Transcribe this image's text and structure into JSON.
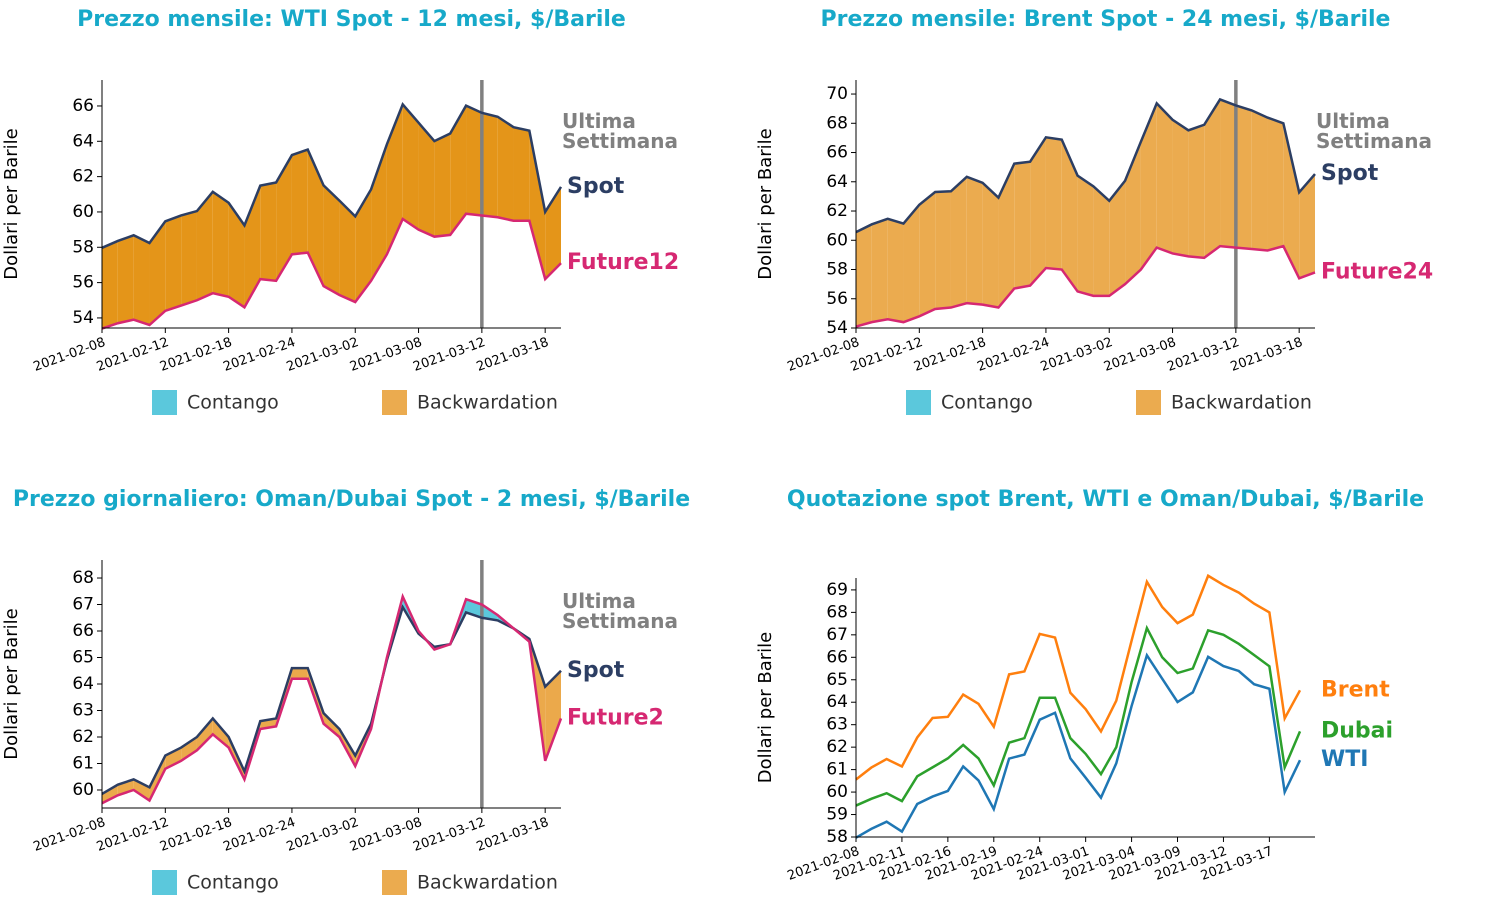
{
  "chart_data": [
    {
      "type": "area",
      "title": "Prezzo mensile: WTI Spot - 12 mesi, $/Barile",
      "ylabel": "Dollari per Barile",
      "categories": [
        "2021-02-08",
        "2021-02-09",
        "2021-02-10",
        "2021-02-11",
        "2021-02-12",
        "2021-02-15",
        "2021-02-16",
        "2021-02-17",
        "2021-02-18",
        "2021-02-19",
        "2021-02-22",
        "2021-02-23",
        "2021-02-24",
        "2021-02-25",
        "2021-02-26",
        "2021-03-01",
        "2021-03-02",
        "2021-03-03",
        "2021-03-04",
        "2021-03-05",
        "2021-03-08",
        "2021-03-09",
        "2021-03-10",
        "2021-03-11",
        "2021-03-12",
        "2021-03-15",
        "2021-03-16",
        "2021-03-17",
        "2021-03-18",
        "2021-03-19"
      ],
      "series": [
        {
          "name": "Spot",
          "color": "#2c3e63",
          "values": [
            57.97,
            58.36,
            58.68,
            58.24,
            59.47,
            59.8,
            60.05,
            61.14,
            60.52,
            59.24,
            61.49,
            61.67,
            63.22,
            63.53,
            61.5,
            60.64,
            59.75,
            61.28,
            63.83,
            66.09,
            65.05,
            64.01,
            64.44,
            66.02,
            65.61,
            65.39,
            64.8,
            64.6,
            60.0,
            61.42
          ]
        },
        {
          "name": "Future12",
          "color": "#d62872",
          "values": [
            53.4,
            53.7,
            53.9,
            53.6,
            54.4,
            54.7,
            55.0,
            55.4,
            55.2,
            54.6,
            56.2,
            56.1,
            57.6,
            57.7,
            55.8,
            55.3,
            54.9,
            56.1,
            57.6,
            59.6,
            59.0,
            58.6,
            58.7,
            59.9,
            59.8,
            59.7,
            59.5,
            59.5,
            56.2,
            57.1
          ]
        }
      ],
      "contango_color": "#5bc8dc",
      "backwardation_color": "#e49519",
      "legend": [
        {
          "name": "Contango",
          "color": "#5bc8dc"
        },
        {
          "name": "Backwardation",
          "color": "#ebab4f"
        }
      ],
      "marker": {
        "x": "2021-03-12",
        "label": "Ultima Settimana",
        "color": "#808080"
      },
      "ylim": [
        53.43,
        67.47
      ],
      "yticks": [
        54,
        56,
        58,
        60,
        62,
        64,
        66
      ],
      "xticks": [
        "2021-02-08",
        "2021-02-12",
        "2021-02-18",
        "2021-02-24",
        "2021-03-02",
        "2021-03-08",
        "2021-03-12",
        "2021-03-18"
      ]
    },
    {
      "type": "area",
      "title": "Prezzo mensile: Brent Spot - 24 mesi, $/Barile",
      "ylabel": "Dollari per Barile",
      "categories": [
        "2021-02-08",
        "2021-02-09",
        "2021-02-10",
        "2021-02-11",
        "2021-02-12",
        "2021-02-15",
        "2021-02-16",
        "2021-02-17",
        "2021-02-18",
        "2021-02-19",
        "2021-02-22",
        "2021-02-23",
        "2021-02-24",
        "2021-02-25",
        "2021-02-26",
        "2021-03-01",
        "2021-03-02",
        "2021-03-03",
        "2021-03-04",
        "2021-03-05",
        "2021-03-08",
        "2021-03-09",
        "2021-03-10",
        "2021-03-11",
        "2021-03-12",
        "2021-03-15",
        "2021-03-16",
        "2021-03-17",
        "2021-03-18",
        "2021-03-19"
      ],
      "series": [
        {
          "name": "Spot",
          "color": "#2c3e63",
          "values": [
            60.56,
            61.09,
            61.47,
            61.14,
            62.43,
            63.3,
            63.35,
            64.34,
            63.93,
            62.91,
            65.24,
            65.37,
            67.04,
            66.88,
            64.42,
            63.69,
            62.7,
            64.07,
            66.74,
            69.36,
            68.24,
            67.52,
            67.9,
            69.63,
            69.22,
            68.88,
            68.39,
            68.0,
            63.28,
            64.53
          ]
        },
        {
          "name": "Future24",
          "color": "#d62872",
          "values": [
            54.1,
            54.4,
            54.6,
            54.4,
            54.8,
            55.3,
            55.4,
            55.7,
            55.6,
            55.4,
            56.7,
            56.9,
            58.1,
            58.0,
            56.5,
            56.2,
            56.2,
            57.0,
            58.0,
            59.5,
            59.1,
            58.9,
            58.8,
            59.6,
            59.5,
            59.4,
            59.3,
            59.6,
            57.4,
            57.8
          ]
        }
      ],
      "contango_color": "#5bc8dc",
      "backwardation_color": "#ebab4f",
      "legend": [
        {
          "name": "Contango",
          "color": "#5bc8dc"
        },
        {
          "name": "Backwardation",
          "color": "#ebab4f"
        }
      ],
      "marker": {
        "x": "2021-03-12",
        "label": "Ultima Settimana",
        "color": "#808080"
      },
      "ylim": [
        54,
        70.96
      ],
      "yticks": [
        54,
        56,
        58,
        60,
        62,
        64,
        66,
        68,
        70
      ],
      "xticks": [
        "2021-02-08",
        "2021-02-12",
        "2021-02-18",
        "2021-02-24",
        "2021-03-02",
        "2021-03-08",
        "2021-03-12",
        "2021-03-18"
      ]
    },
    {
      "type": "area",
      "title": "Prezzo giornaliero: Oman/Dubai Spot - 2 mesi, $/Barile",
      "ylabel": "Dollari per Barile",
      "categories": [
        "2021-02-08",
        "2021-02-09",
        "2021-02-10",
        "2021-02-11",
        "2021-02-12",
        "2021-02-15",
        "2021-02-16",
        "2021-02-17",
        "2021-02-18",
        "2021-02-19",
        "2021-02-22",
        "2021-02-23",
        "2021-02-24",
        "2021-02-25",
        "2021-02-26",
        "2021-03-01",
        "2021-03-02",
        "2021-03-03",
        "2021-03-04",
        "2021-03-05",
        "2021-03-08",
        "2021-03-09",
        "2021-03-10",
        "2021-03-11",
        "2021-03-12",
        "2021-03-15",
        "2021-03-16",
        "2021-03-17",
        "2021-03-18",
        "2021-03-19"
      ],
      "series": [
        {
          "name": "Spot",
          "color": "#2c3e63",
          "values": [
            59.85,
            60.2,
            60.4,
            60.1,
            61.3,
            61.6,
            62.0,
            62.7,
            62.0,
            60.7,
            62.6,
            62.7,
            64.6,
            64.6,
            62.9,
            62.3,
            61.3,
            62.5,
            64.9,
            66.9,
            65.9,
            65.4,
            65.5,
            66.7,
            66.5,
            66.4,
            66.1,
            65.7,
            63.9,
            64.5
          ]
        },
        {
          "name": "Future2",
          "color": "#d62872",
          "values": [
            59.5,
            59.8,
            60.0,
            59.6,
            60.8,
            61.1,
            61.5,
            62.1,
            61.6,
            60.4,
            62.3,
            62.4,
            64.2,
            64.2,
            62.5,
            62.0,
            60.9,
            62.3,
            65.0,
            67.3,
            66.0,
            65.3,
            65.5,
            67.2,
            67.0,
            66.6,
            66.1,
            65.6,
            61.1,
            62.7
          ]
        }
      ],
      "contango_color": "#5bc8dc",
      "backwardation_color": "#eba94b",
      "legend": [
        {
          "name": "Contango",
          "color": "#5bc8dc"
        },
        {
          "name": "Backwardation",
          "color": "#ebab4f"
        }
      ],
      "marker": {
        "x": "2021-03-12",
        "label": "Ultima Settimana",
        "color": "#808080"
      },
      "ylim": [
        59.32,
        68.68
      ],
      "yticks": [
        60,
        61,
        62,
        63,
        64,
        65,
        66,
        67,
        68
      ],
      "xticks": [
        "2021-02-08",
        "2021-02-12",
        "2021-02-18",
        "2021-02-24",
        "2021-03-02",
        "2021-03-08",
        "2021-03-12",
        "2021-03-18"
      ]
    },
    {
      "type": "line",
      "title": "Quotazione spot Brent, WTI e Oman/Dubai, $/Barile",
      "ylabel": "Dollari per Barile",
      "categories": [
        "2021-02-08",
        "2021-02-09",
        "2021-02-10",
        "2021-02-11",
        "2021-02-12",
        "2021-02-15",
        "2021-02-16",
        "2021-02-17",
        "2021-02-18",
        "2021-02-19",
        "2021-02-22",
        "2021-02-23",
        "2021-02-24",
        "2021-02-25",
        "2021-02-26",
        "2021-03-01",
        "2021-03-02",
        "2021-03-03",
        "2021-03-04",
        "2021-03-05",
        "2021-03-08",
        "2021-03-09",
        "2021-03-10",
        "2021-03-11",
        "2021-03-12",
        "2021-03-15",
        "2021-03-16",
        "2021-03-17",
        "2021-03-18",
        "2021-03-19"
      ],
      "series": [
        {
          "name": "Brent",
          "color": "#ff7f0e",
          "values": [
            60.56,
            61.09,
            61.47,
            61.14,
            62.43,
            63.3,
            63.35,
            64.34,
            63.93,
            62.91,
            65.24,
            65.37,
            67.04,
            66.88,
            64.42,
            63.69,
            62.7,
            64.07,
            66.74,
            69.36,
            68.24,
            67.52,
            67.9,
            69.63,
            69.22,
            68.88,
            68.39,
            68.0,
            63.28,
            64.53
          ]
        },
        {
          "name": "Dubai",
          "color": "#2ca02c",
          "values": [
            59.4,
            59.7,
            59.95,
            59.6,
            60.7,
            61.1,
            61.5,
            62.1,
            61.5,
            60.3,
            62.2,
            62.4,
            64.2,
            64.2,
            62.4,
            61.7,
            60.8,
            62.0,
            64.9,
            67.3,
            66.0,
            65.3,
            65.5,
            67.2,
            67.0,
            66.6,
            66.1,
            65.6,
            61.1,
            62.7
          ]
        },
        {
          "name": "WTI",
          "color": "#1f77b4",
          "values": [
            57.97,
            58.36,
            58.68,
            58.24,
            59.47,
            59.8,
            60.05,
            61.14,
            60.52,
            59.24,
            61.49,
            61.67,
            63.22,
            63.53,
            61.5,
            60.64,
            59.75,
            61.28,
            63.83,
            66.09,
            65.05,
            64.01,
            64.44,
            66.02,
            65.61,
            65.39,
            64.8,
            64.6,
            60.0,
            61.42
          ]
        }
      ],
      "ylim": [
        58,
        69.53
      ],
      "yticks": [
        58,
        59,
        60,
        61,
        62,
        63,
        64,
        65,
        66,
        67,
        68,
        69
      ],
      "xticks": [
        "2021-02-08",
        "2021-02-11",
        "2021-02-16",
        "2021-02-19",
        "2021-02-24",
        "2021-03-01",
        "2021-03-04",
        "2021-03-09",
        "2021-03-12",
        "2021-03-17"
      ]
    }
  ]
}
